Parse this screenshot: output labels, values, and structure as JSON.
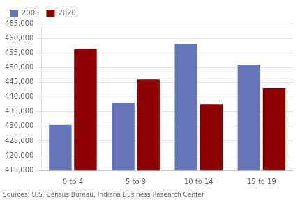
{
  "chart_data": {
    "type": "bar",
    "categories": [
      "0 to 4",
      "5 to 9",
      "10 to 14",
      "15 to 19"
    ],
    "series": [
      {
        "name": "2005",
        "color": "#6674b8",
        "values": [
          430500,
          438000,
          458000,
          451000
        ]
      },
      {
        "name": "2020",
        "color": "#8b0000",
        "values": [
          456500,
          446000,
          437500,
          443000
        ]
      }
    ],
    "ylim": [
      415000,
      465000
    ],
    "yticks": [
      {
        "value": 415000,
        "label": "415,000"
      },
      {
        "value": 420000,
        "label": "420,000"
      },
      {
        "value": 425000,
        "label": "425,000"
      },
      {
        "value": 430000,
        "label": "430,000"
      },
      {
        "value": 435000,
        "label": "435,000"
      },
      {
        "value": 440000,
        "label": "440,000"
      },
      {
        "value": 445000,
        "label": "445,000"
      },
      {
        "value": 450000,
        "label": "450,000"
      },
      {
        "value": 455000,
        "label": "455,000"
      },
      {
        "value": 460000,
        "label": "460,000"
      },
      {
        "value": 465000,
        "label": "465,000"
      }
    ],
    "grid": true,
    "legend": "upper left",
    "annotations": [
      "Sources: U.S. Census Bureau, Indiana Business Research Center"
    ]
  }
}
